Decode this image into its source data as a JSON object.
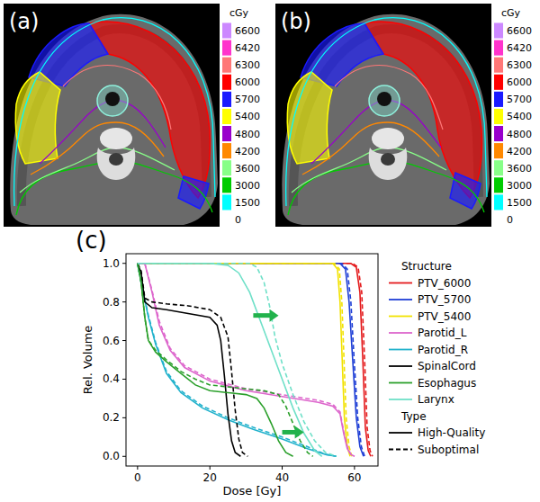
{
  "dose_maps": [
    {
      "label": "(a)"
    },
    {
      "label": "(b)"
    }
  ],
  "colorbar": {
    "unit": "cGy",
    "ticks": [
      6600,
      6420,
      6300,
      6000,
      5700,
      5400,
      4800,
      4200,
      3600,
      3000,
      1500,
      0
    ],
    "colors": [
      "#cc88ff",
      "#ff33cc",
      "#ff7777",
      "#ff0000",
      "#1a1aff",
      "#ffff00",
      "#9900cc",
      "#ff8800",
      "#88ff88",
      "#00cc00",
      "#00ffff",
      null
    ]
  },
  "chart_data": {
    "type": "line",
    "panel_label": "(c)",
    "x_label": "Dose [Gy]",
    "y_label": "Rel. Volume",
    "xlim": [
      -3.2,
      66.5
    ],
    "xticks": [
      0,
      20,
      40,
      60
    ],
    "ylim": [
      -0.05,
      1.05
    ],
    "yticks": [
      {
        "value": 0,
        "label": "0.0"
      },
      {
        "value": 0.2,
        "label": "0.2"
      },
      {
        "value": 0.4,
        "label": "0.4"
      },
      {
        "value": 0.6,
        "label": "0.6"
      },
      {
        "value": 0.8,
        "label": "0.8"
      },
      {
        "value": 1.0,
        "label": "1.0"
      }
    ],
    "grid": false,
    "legend": "right",
    "legend_groups": [
      {
        "title": "Structure"
      },
      {
        "title": "Type",
        "entries": [
          {
            "name": "High-Quality",
            "line_style": "solid"
          },
          {
            "name": "Suboptimal",
            "line_style": "dashed"
          }
        ]
      }
    ],
    "series": [
      {
        "name": "PTV_6000",
        "color": "#e41a1c",
        "line_style": "solid",
        "x": [
          0,
          59,
          60.5,
          61.5,
          62.3,
          63,
          63.8,
          64.5
        ],
        "values": [
          1,
          1,
          0.98,
          0.85,
          0.5,
          0.15,
          0.03,
          0
        ]
      },
      {
        "name": "PTV_6000",
        "color": "#e41a1c",
        "line_style": "dashed",
        "x": [
          0,
          59.5,
          61,
          62,
          62.8,
          63.5,
          64.3,
          65
        ],
        "values": [
          1,
          1,
          0.98,
          0.85,
          0.5,
          0.15,
          0.03,
          0
        ]
      },
      {
        "name": "PTV_5700",
        "color": "#1f3fd6",
        "line_style": "solid",
        "x": [
          0,
          56,
          57.5,
          58.5,
          59.5,
          60.5,
          61.5,
          62.5
        ],
        "values": [
          1,
          1,
          0.97,
          0.8,
          0.5,
          0.2,
          0.05,
          0
        ]
      },
      {
        "name": "PTV_5700",
        "color": "#1f3fd6",
        "line_style": "dashed",
        "x": [
          0,
          56.5,
          58,
          59,
          59.9,
          60.9,
          61.9,
          62.8
        ],
        "values": [
          1,
          1,
          0.97,
          0.8,
          0.5,
          0.2,
          0.05,
          0
        ]
      },
      {
        "name": "PTV_5400",
        "color": "#f2e200",
        "line_style": "solid",
        "x": [
          0,
          54,
          55.3,
          56,
          56.6,
          57.2,
          58,
          58.8
        ],
        "values": [
          1,
          1,
          0.97,
          0.8,
          0.5,
          0.2,
          0.05,
          0
        ]
      },
      {
        "name": "PTV_5400",
        "color": "#f2e200",
        "line_style": "dashed",
        "x": [
          0,
          54.5,
          55.8,
          56.5,
          57.1,
          57.7,
          58.5,
          59.3
        ],
        "values": [
          1,
          1,
          0.97,
          0.8,
          0.5,
          0.2,
          0.05,
          0
        ]
      },
      {
        "name": "Parotid_L",
        "color": "#dd66cc",
        "line_style": "solid",
        "x": [
          0,
          2,
          4,
          6,
          9,
          13,
          20,
          30,
          40,
          50,
          54,
          56,
          57,
          58,
          59,
          60
        ],
        "values": [
          1,
          1,
          0.85,
          0.68,
          0.55,
          0.46,
          0.39,
          0.34,
          0.31,
          0.28,
          0.26,
          0.22,
          0.12,
          0.04,
          0.01,
          0
        ]
      },
      {
        "name": "Parotid_L",
        "color": "#dd66cc",
        "line_style": "dashed",
        "x": [
          0,
          2,
          4,
          6,
          9,
          13,
          20,
          30,
          40,
          50,
          54,
          56,
          57,
          58,
          59,
          60
        ],
        "values": [
          1,
          1,
          0.86,
          0.7,
          0.56,
          0.47,
          0.4,
          0.35,
          0.32,
          0.29,
          0.27,
          0.23,
          0.13,
          0.05,
          0.01,
          0
        ]
      },
      {
        "name": "Parotid_R",
        "color": "#22b2cc",
        "line_style": "solid",
        "x": [
          0,
          1,
          3,
          5,
          8,
          12,
          18,
          25,
          32,
          40,
          47,
          52,
          55
        ],
        "values": [
          1,
          0.9,
          0.72,
          0.58,
          0.43,
          0.33,
          0.25,
          0.19,
          0.14,
          0.09,
          0.04,
          0.01,
          0
        ]
      },
      {
        "name": "Parotid_R",
        "color": "#22b2cc",
        "line_style": "dashed",
        "x": [
          0,
          1,
          3,
          5,
          8,
          12,
          18,
          25,
          32,
          40,
          47,
          52,
          55
        ],
        "values": [
          1,
          0.9,
          0.73,
          0.59,
          0.44,
          0.34,
          0.26,
          0.2,
          0.15,
          0.1,
          0.05,
          0.01,
          0
        ]
      },
      {
        "name": "SpinalCord",
        "color": "#000000",
        "line_style": "solid",
        "x": [
          0,
          1,
          2,
          4,
          8,
          14,
          20,
          22,
          23,
          24,
          25,
          26,
          27,
          28.5
        ],
        "values": [
          1,
          0.95,
          0.8,
          0.77,
          0.76,
          0.74,
          0.72,
          0.68,
          0.6,
          0.42,
          0.22,
          0.08,
          0.02,
          0
        ]
      },
      {
        "name": "SpinalCord",
        "color": "#000000",
        "line_style": "dashed",
        "x": [
          0,
          1,
          2,
          4,
          8,
          14,
          20,
          23,
          25,
          26,
          27,
          28,
          29,
          30.5
        ],
        "values": [
          1,
          0.96,
          0.82,
          0.8,
          0.79,
          0.78,
          0.76,
          0.72,
          0.62,
          0.44,
          0.24,
          0.09,
          0.02,
          0
        ]
      },
      {
        "name": "Esophagus",
        "color": "#2ca02c",
        "line_style": "solid",
        "x": [
          0,
          1,
          2,
          3,
          5,
          8,
          12,
          16,
          20,
          25,
          30,
          33,
          35,
          37,
          39,
          41,
          43
        ],
        "values": [
          1,
          0.9,
          0.72,
          0.6,
          0.54,
          0.49,
          0.43,
          0.37,
          0.34,
          0.33,
          0.32,
          0.3,
          0.25,
          0.17,
          0.08,
          0.02,
          0
        ]
      },
      {
        "name": "Esophagus",
        "color": "#2ca02c",
        "line_style": "dashed",
        "x": [
          0,
          1,
          2,
          3,
          5,
          8,
          12,
          16,
          20,
          25,
          30,
          35,
          39,
          41,
          43,
          45,
          47,
          48.5
        ],
        "values": [
          1,
          0.9,
          0.72,
          0.6,
          0.55,
          0.5,
          0.44,
          0.4,
          0.37,
          0.36,
          0.35,
          0.34,
          0.32,
          0.26,
          0.17,
          0.08,
          0.02,
          0
        ]
      },
      {
        "name": "Larynx",
        "color": "#6fe0c8",
        "line_style": "solid",
        "x": [
          0,
          3,
          6,
          10,
          20,
          25,
          28,
          31,
          34,
          37,
          40,
          43,
          46,
          49,
          51
        ],
        "values": [
          1,
          1,
          1,
          1,
          1,
          0.99,
          0.95,
          0.85,
          0.7,
          0.55,
          0.4,
          0.25,
          0.12,
          0.03,
          0
        ]
      },
      {
        "name": "Larynx",
        "color": "#6fe0c8",
        "line_style": "dashed",
        "x": [
          0,
          8,
          15,
          25,
          31,
          33,
          35,
          36.5,
          38,
          40,
          43,
          46,
          49,
          52,
          55
        ],
        "values": [
          1,
          1,
          1,
          1,
          1,
          0.98,
          0.9,
          0.78,
          0.62,
          0.48,
          0.32,
          0.18,
          0.08,
          0.02,
          0
        ]
      }
    ]
  }
}
